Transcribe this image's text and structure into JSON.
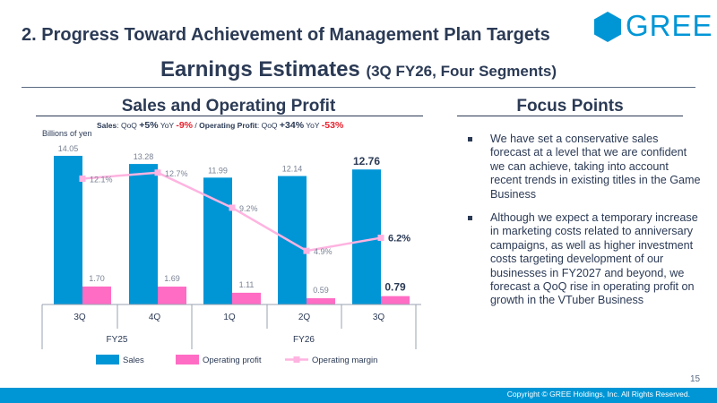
{
  "header": {
    "slide_title": "2. Progress Toward Achievement of Management Plan Targets",
    "logo_text": "GREE",
    "main_heading": "Earnings Estimates",
    "main_heading_sub": "(3Q FY26, Four Segments)"
  },
  "left_section": {
    "heading": "Sales and Operating Profit",
    "change_summary": {
      "sales_label": "Sales",
      "qoq_label": "QoQ",
      "sales_qoq": "+5%",
      "yoy_label": "YoY",
      "sales_yoy": "-9%",
      "separator": "/",
      "op_label": "Operating Profit",
      "op_qoq": "+34%",
      "op_yoy": "-53%"
    },
    "unit_label": "Billions of yen"
  },
  "chart_data": {
    "type": "bar",
    "categories": [
      "3Q",
      "4Q",
      "1Q",
      "2Q",
      "3Q"
    ],
    "fiscal_groups": [
      {
        "label": "FY25",
        "span": 2
      },
      {
        "label": "FY26",
        "span": 3
      }
    ],
    "series": [
      {
        "name": "Sales",
        "type": "bar",
        "values": [
          14.05,
          13.28,
          11.99,
          12.14,
          12.76
        ],
        "labels": [
          "14.05",
          "13.28",
          "11.99",
          "12.14",
          "12.76"
        ],
        "color": "#0096d6"
      },
      {
        "name": "Operating profit",
        "type": "bar",
        "values": [
          1.7,
          1.69,
          1.11,
          0.59,
          0.79
        ],
        "labels": [
          "1.70",
          "1.69",
          "1.11",
          "0.59",
          "0.79"
        ],
        "color": "#ff6cc4"
      },
      {
        "name": "Operating margin",
        "type": "line",
        "values": [
          12.1,
          12.7,
          9.2,
          4.9,
          6.2
        ],
        "labels": [
          "12.1%",
          "12.7%",
          "9.2%",
          "4.9%",
          "6.2%"
        ],
        "color": "#ffb3e0"
      }
    ],
    "highlight_index": 4,
    "legend_placement": "bottom",
    "grid": false
  },
  "right_section": {
    "heading": "Focus Points",
    "bullets": [
      "We have set a conservative sales forecast at a level that we are confident we can achieve, taking into account recent trends in existing titles in the Game Business",
      "Although we expect a temporary increase in marketing costs related to anniversary campaigns, as well as higher investment costs targeting development of our businesses in FY2027 and beyond, we forecast a QoQ rise in operating profit on growth in the VTuber Business"
    ]
  },
  "footer": {
    "page_number": "15",
    "copyright": "Copyright © GREE Holdings, Inc. All Rights Reserved."
  },
  "colors": {
    "navy": "#2b3a55",
    "brand_blue": "#0096d6",
    "profit_pink": "#ff6cc4",
    "margin_pink": "#ffb3e0",
    "negative_red": "#e8212d"
  }
}
